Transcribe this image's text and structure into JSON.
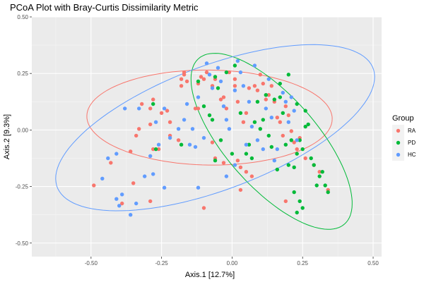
{
  "chart_data": {
    "type": "scatter",
    "title": "PCoA Plot with Bray-Curtis Dissimilarity Metric",
    "xlabel": "Axis.1   [12.7%]",
    "ylabel": "Axis.2   [9.3%]",
    "xlim": [
      -0.71,
      0.53
    ],
    "ylim": [
      -0.56,
      0.5
    ],
    "x_ticks": [
      -0.5,
      -0.25,
      0.0,
      0.25,
      0.5
    ],
    "x_tick_labels": [
      "-0.50",
      "-0.25",
      "0.00",
      "0.25",
      "0.50"
    ],
    "y_ticks": [
      -0.5,
      -0.25,
      0.0,
      0.25,
      0.5
    ],
    "y_tick_labels": [
      "-0.50",
      "-0.25",
      "0.00",
      "0.25",
      "0.50"
    ],
    "grid": true,
    "legend": {
      "title": "Group",
      "position": "right"
    },
    "series": [
      {
        "name": "RA",
        "color": "#F8766D",
        "ellipse": {
          "cx": -0.08,
          "cy": 0.055,
          "rx": 0.435,
          "ry": 0.21,
          "angle": -1
        },
        "points": [
          [
            -0.49,
            -0.245
          ],
          [
            -0.43,
            -0.145
          ],
          [
            -0.36,
            -0.095
          ],
          [
            -0.39,
            -0.325
          ],
          [
            -0.34,
            -0.025
          ],
          [
            -0.32,
            0.115
          ],
          [
            -0.33,
            0.005
          ],
          [
            -0.29,
            0.095
          ],
          [
            -0.29,
            0.025
          ],
          [
            -0.28,
            0.135
          ],
          [
            -0.26,
            -0.085
          ],
          [
            -0.28,
            -0.085
          ],
          [
            -0.25,
            0.075
          ],
          [
            -0.23,
            0.085
          ],
          [
            -0.22,
            0.035
          ],
          [
            -0.22,
            -0.025
          ],
          [
            -0.19,
            -0.045
          ],
          [
            -0.18,
            0.195
          ],
          [
            -0.18,
            0.225
          ],
          [
            -0.17,
            0.245
          ],
          [
            -0.17,
            0.255
          ],
          [
            -0.16,
            0.215
          ],
          [
            -0.13,
            0.095
          ],
          [
            -0.12,
            0.095
          ],
          [
            -0.12,
            0.205
          ],
          [
            -0.11,
            0.235
          ],
          [
            -0.1,
            0.225
          ],
          [
            -0.09,
            0.255
          ],
          [
            -0.07,
            0.195
          ],
          [
            -0.06,
            0.225
          ],
          [
            -0.04,
            0.135
          ],
          [
            -0.03,
            0.145
          ],
          [
            -0.02,
            0.095
          ],
          [
            -0.01,
            0.255
          ],
          [
            0.01,
            0.195
          ],
          [
            0.01,
            0.225
          ],
          [
            0.02,
            0.125
          ],
          [
            0.04,
            0.035
          ],
          [
            0.05,
            0.075
          ],
          [
            0.06,
            0.185
          ],
          [
            0.08,
            0.195
          ],
          [
            0.09,
            0.175
          ],
          [
            0.1,
            0.245
          ],
          [
            0.11,
            0.205
          ],
          [
            0.12,
            0.135
          ],
          [
            0.13,
            0.155
          ],
          [
            0.14,
            0.195
          ],
          [
            0.15,
            0.125
          ],
          [
            0.16,
            0.055
          ],
          [
            0.17,
            0.035
          ],
          [
            0.18,
            -0.025
          ],
          [
            0.19,
            0.105
          ],
          [
            0.2,
            0.065
          ],
          [
            0.21,
            -0.005
          ],
          [
            0.22,
            -0.055
          ],
          [
            0.23,
            -0.085
          ],
          [
            0.24,
            -0.035
          ],
          [
            0.26,
            -0.125
          ],
          [
            0.29,
            -0.155
          ],
          [
            0.31,
            -0.185
          ],
          [
            0.34,
            -0.265
          ],
          [
            -0.07,
            -0.055
          ],
          [
            -0.06,
            -0.125
          ],
          [
            -0.03,
            -0.145
          ],
          [
            0.02,
            -0.135
          ],
          [
            0.03,
            -0.165
          ],
          [
            0.05,
            -0.185
          ],
          [
            0.07,
            -0.205
          ],
          [
            0.03,
            -0.265
          ],
          [
            -0.35,
            -0.235
          ],
          [
            -0.29,
            -0.315
          ],
          [
            -0.1,
            -0.345
          ],
          [
            0.19,
            -0.315
          ]
        ]
      },
      {
        "name": "PD",
        "color": "#00BA38",
        "ellipse": {
          "cx": 0.14,
          "cy": -0.05,
          "rx": 0.45,
          "ry": 0.175,
          "angle": -57
        },
        "points": [
          [
            -0.28,
            0.115
          ],
          [
            -0.27,
            -0.085
          ],
          [
            -0.18,
            -0.065
          ],
          [
            -0.12,
            0.215
          ],
          [
            -0.1,
            0.105
          ],
          [
            -0.08,
            0.065
          ],
          [
            -0.07,
            0.045
          ],
          [
            -0.06,
            0.235
          ],
          [
            -0.05,
            0.185
          ],
          [
            -0.04,
            -0.045
          ],
          [
            -0.02,
            0.255
          ],
          [
            0.01,
            0.285
          ],
          [
            0.03,
            0.075
          ],
          [
            0.05,
            -0.105
          ],
          [
            0.06,
            -0.065
          ],
          [
            0.08,
            0.035
          ],
          [
            0.09,
            0.125
          ],
          [
            0.1,
            0.005
          ],
          [
            0.11,
            0.045
          ],
          [
            0.13,
            -0.025
          ],
          [
            0.14,
            -0.075
          ],
          [
            0.15,
            0.135
          ],
          [
            0.16,
            -0.175
          ],
          [
            0.17,
            0.145
          ],
          [
            0.18,
            0.075
          ],
          [
            0.19,
            -0.065
          ],
          [
            0.2,
            -0.155
          ],
          [
            0.21,
            -0.045
          ],
          [
            0.22,
            -0.165
          ],
          [
            0.23,
            -0.105
          ],
          [
            0.24,
            -0.045
          ],
          [
            0.25,
            -0.085
          ],
          [
            0.26,
            0.085
          ],
          [
            0.27,
            0.025
          ],
          [
            0.28,
            -0.125
          ],
          [
            0.29,
            -0.155
          ],
          [
            0.3,
            -0.245
          ],
          [
            0.31,
            -0.205
          ],
          [
            0.32,
            -0.185
          ],
          [
            0.33,
            -0.245
          ],
          [
            0.34,
            -0.275
          ],
          [
            0.22,
            -0.275
          ],
          [
            0.24,
            -0.315
          ],
          [
            0.25,
            -0.345
          ],
          [
            0.23,
            -0.365
          ],
          [
            0.26,
            0.015
          ],
          [
            0.23,
            0.115
          ],
          [
            0.2,
            0.245
          ],
          [
            0.17,
            0.205
          ],
          [
            0.12,
            0.155
          ],
          [
            0.0,
            -0.105
          ],
          [
            -0.06,
            -0.135
          ],
          [
            0.07,
            -0.125
          ]
        ]
      },
      {
        "name": "HC",
        "color": "#619CFF",
        "ellipse": {
          "cx": -0.06,
          "cy": 0.01,
          "rx": 0.62,
          "ry": 0.265,
          "angle": 27
        },
        "points": [
          [
            -0.46,
            -0.215
          ],
          [
            -0.44,
            -0.125
          ],
          [
            -0.41,
            -0.105
          ],
          [
            -0.41,
            -0.305
          ],
          [
            -0.4,
            -0.335
          ],
          [
            -0.39,
            -0.285
          ],
          [
            -0.38,
            0.095
          ],
          [
            -0.36,
            -0.375
          ],
          [
            -0.34,
            -0.325
          ],
          [
            -0.33,
            0.095
          ],
          [
            -0.31,
            -0.205
          ],
          [
            -0.29,
            -0.115
          ],
          [
            -0.27,
            0.035
          ],
          [
            -0.26,
            -0.065
          ],
          [
            -0.24,
            0.095
          ],
          [
            -0.24,
            -0.255
          ],
          [
            -0.22,
            -0.035
          ],
          [
            -0.19,
            0.005
          ],
          [
            -0.17,
            0.045
          ],
          [
            -0.16,
            0.115
          ],
          [
            -0.15,
            -0.065
          ],
          [
            -0.14,
            0.005
          ],
          [
            -0.13,
            -0.075
          ],
          [
            -0.12,
            0.145
          ],
          [
            -0.1,
            -0.035
          ],
          [
            -0.09,
            0.295
          ],
          [
            -0.08,
            0.245
          ],
          [
            -0.07,
            0.185
          ],
          [
            -0.05,
            0.275
          ],
          [
            -0.04,
            0.215
          ],
          [
            -0.03,
            0.105
          ],
          [
            -0.02,
            0.045
          ],
          [
            -0.01,
            0.005
          ],
          [
            0.01,
            0.175
          ],
          [
            0.02,
            0.305
          ],
          [
            0.03,
            0.255
          ],
          [
            0.04,
            0.195
          ],
          [
            0.05,
            -0.065
          ],
          [
            0.06,
            0.125
          ],
          [
            0.07,
            0.015
          ],
          [
            0.08,
            0.285
          ],
          [
            0.09,
            -0.045
          ],
          [
            0.11,
            -0.085
          ],
          [
            0.12,
            0.095
          ],
          [
            0.13,
            0.225
          ],
          [
            0.14,
            0.055
          ],
          [
            0.15,
            -0.135
          ],
          [
            0.16,
            -0.085
          ],
          [
            0.18,
            0.165
          ],
          [
            0.19,
            0.125
          ],
          [
            0.2,
            0.035
          ],
          [
            0.21,
            0.145
          ],
          [
            0.22,
            0.085
          ],
          [
            0.23,
            -0.045
          ],
          [
            -0.12,
            -0.255
          ],
          [
            -0.02,
            -0.205
          ],
          [
            0.01,
            -0.155
          ],
          [
            -0.28,
            -0.195
          ]
        ]
      }
    ]
  }
}
